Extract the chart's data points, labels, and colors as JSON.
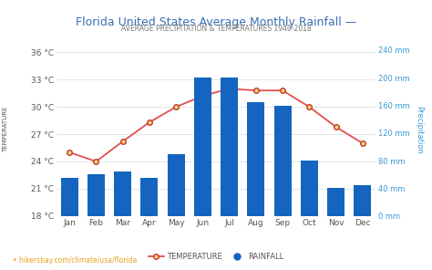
{
  "title": "Florida United States Average Monthly Rainfall —",
  "subtitle": "AVERAGE PRECIPITATION & TEMPERATURES 1940-2018",
  "months": [
    "Jan",
    "Feb",
    "Mar",
    "Apr",
    "May",
    "Jun",
    "Jul",
    "Aug",
    "Sep",
    "Oct",
    "Nov",
    "Dec"
  ],
  "temperature": [
    25.0,
    24.0,
    26.2,
    28.3,
    30.0,
    31.2,
    32.0,
    31.8,
    31.8,
    30.0,
    27.8,
    26.0
  ],
  "rainfall": [
    55,
    60,
    65,
    55,
    90,
    200,
    200,
    165,
    160,
    80,
    40,
    45
  ],
  "bar_color": "#1565c0",
  "line_color": "#e05050",
  "marker_face": "#f5d76e",
  "marker_edge": "#c0392b",
  "temp_ylim": [
    18,
    37
  ],
  "temp_yticks": [
    18,
    21,
    24,
    27,
    30,
    33,
    36
  ],
  "precip_ylim": [
    0,
    250
  ],
  "precip_yticks": [
    0,
    40,
    80,
    120,
    160,
    200,
    240
  ],
  "title_color": "#3a6eb5",
  "subtitle_color": "#777777",
  "left_tick_color": "#555555",
  "right_axis_color": "#3a99d8",
  "bg_color": "#ffffff",
  "plot_bg_color": "#ffffff",
  "grid_color": "#e0e0e0",
  "footer_text": "hikersbay.com/climate/usa/florida",
  "legend_temp_label": "TEMPERATURE",
  "legend_rain_label": "RAINFALL",
  "xlabel_color": "#555555"
}
